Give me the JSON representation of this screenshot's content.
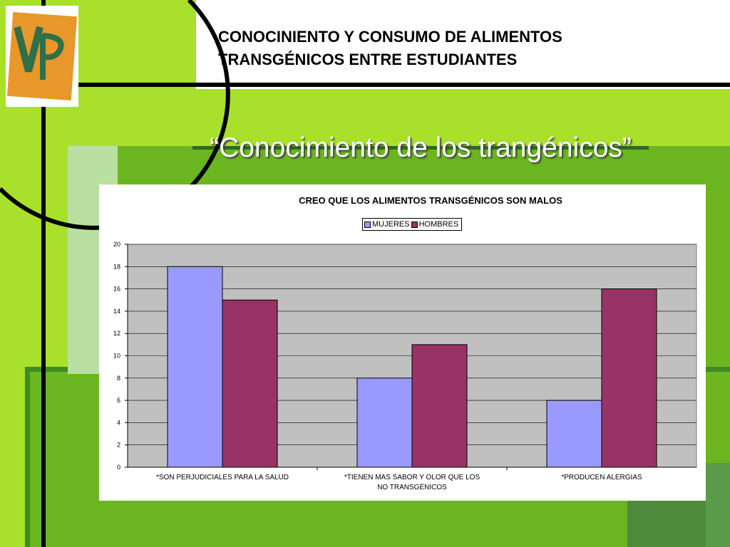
{
  "slide": {
    "title_line1": "CONOCINIENTO Y CONSUMO DE ALIMENTOS",
    "title_line2": "TRANSGÉNICOS ENTRE ESTUDIANTES",
    "subtitle": "“Conocimiento de los trangénicos”",
    "logo": "vp-logo",
    "colors": {
      "lime": "#a8e02c",
      "green": "#6bb521",
      "dark_green": "#3f8b24",
      "pale_green": "#b9e0a0",
      "black": "#000000"
    }
  },
  "chart_data": {
    "type": "bar",
    "title": "CREO QUE LOS ALIMENTOS TRANSGÉNICOS SON MALOS",
    "categories": [
      [
        "*SON PERJUDICIALES PARA LA SALUD"
      ],
      [
        "*TIENEN MAS SABOR Y OLOR QUE LOS",
        "NO TRANSGÉNICOS"
      ],
      [
        "*PRODUCEN ALERGIAS"
      ]
    ],
    "series": [
      {
        "name": "MUJERES",
        "values": [
          18,
          8,
          6
        ],
        "color": "#9999ff"
      },
      {
        "name": "HOMBRES",
        "values": [
          15,
          11,
          16
        ],
        "color": "#993366"
      }
    ],
    "ylim": [
      0,
      20
    ],
    "yticks": [
      0,
      2,
      4,
      6,
      8,
      10,
      12,
      14,
      16,
      18,
      20
    ],
    "grid": true,
    "plot_background": "#c0c0c0",
    "legend_position": "top"
  }
}
